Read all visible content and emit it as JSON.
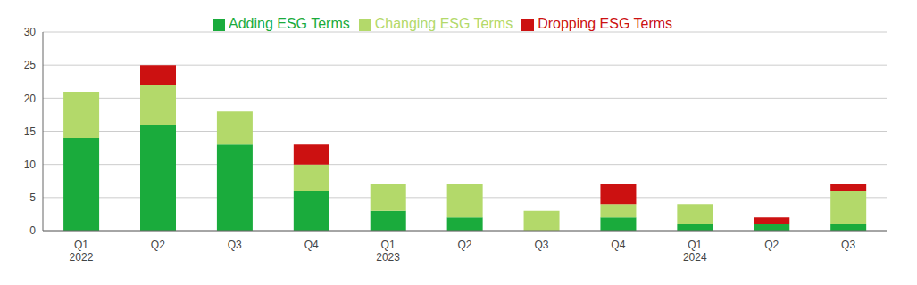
{
  "chart_data": {
    "type": "bar",
    "stacked": true,
    "categories": [
      "Q1\n2022",
      "Q2",
      "Q3",
      "Q4",
      "Q1\n2023",
      "Q2",
      "Q3",
      "Q4",
      "Q1\n2024",
      "Q2",
      "Q3"
    ],
    "series": [
      {
        "name": "Adding ESG Terms",
        "color": "#1aab3c",
        "values": [
          14,
          16,
          13,
          6,
          3,
          2,
          0,
          2,
          1,
          1,
          1
        ]
      },
      {
        "name": "Changing ESG Terms",
        "color": "#b3d96a",
        "values": [
          7,
          6,
          5,
          4,
          4,
          5,
          3,
          2,
          3,
          0,
          5
        ]
      },
      {
        "name": "Dropping ESG Terms",
        "color": "#cc1111",
        "values": [
          0,
          3,
          0,
          3,
          0,
          0,
          0,
          3,
          0,
          1,
          1
        ]
      }
    ],
    "ylim": [
      0,
      30
    ],
    "yticks": [
      0,
      5,
      10,
      15,
      20,
      25,
      30
    ],
    "grid": true,
    "legend": "top"
  }
}
